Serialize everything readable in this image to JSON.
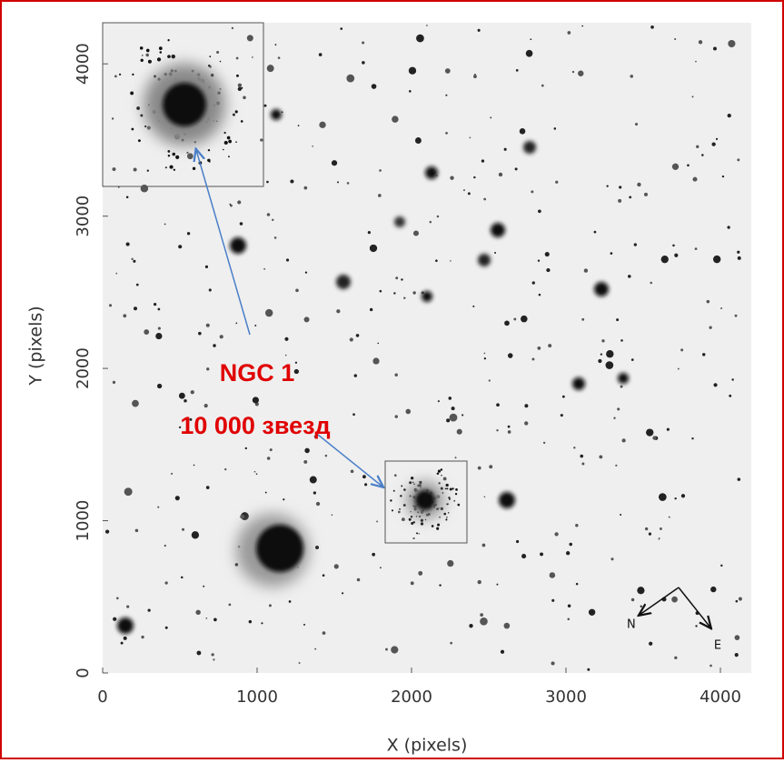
{
  "chart_data": {
    "type": "image",
    "x_label": "X (pixels)",
    "y_label": "Y (pixels)",
    "xlim": [
      0,
      4200
    ],
    "ylim": [
      0,
      4270
    ],
    "xticks": [
      0,
      1000,
      2000,
      3000,
      4000
    ],
    "yticks": [
      0,
      1000,
      2000,
      3000,
      4000
    ],
    "annotations": [
      "NGC 1",
      "10 000 звезд"
    ],
    "compass": [
      "N",
      "E"
    ]
  }
}
